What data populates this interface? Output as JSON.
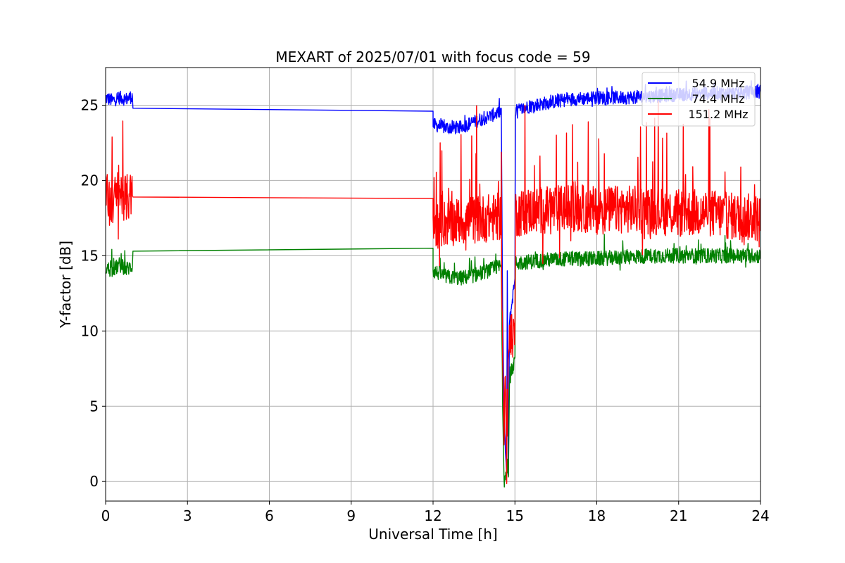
{
  "chart_data": {
    "type": "line",
    "title": "MEXART of 2025/07/01 with focus code = 59",
    "xlabel": "Universal Time [h]",
    "ylabel": "Y-factor [dB]",
    "xlim": [
      0,
      24
    ],
    "ylim": [
      -1.3,
      27.5
    ],
    "xticks": [
      0,
      3,
      6,
      9,
      12,
      15,
      18,
      21,
      24
    ],
    "yticks": [
      0,
      5,
      10,
      15,
      20,
      25
    ],
    "grid": true,
    "legend_position": "top-right",
    "series": [
      {
        "name": "54.9 MHz",
        "color": "#0000ff",
        "x": [
          0,
          0.25,
          0.5,
          0.75,
          0.98,
          1.0,
          12.0,
          12.0,
          12.5,
          13.0,
          13.5,
          14.0,
          14.5,
          14.55,
          14.6,
          14.65,
          14.7,
          14.72,
          14.76,
          14.8,
          15.0,
          15.02,
          15.5,
          16.0,
          17.0,
          18.0,
          19.0,
          20.0,
          21.0,
          22.0,
          23.0,
          24.0
        ],
        "y": [
          25.5,
          25.3,
          25.5,
          25.4,
          25.6,
          24.8,
          24.6,
          23.7,
          23.5,
          23.5,
          23.9,
          24.2,
          24.6,
          11.3,
          5.0,
          2.0,
          0.5,
          14.0,
          0.4,
          10.5,
          13.5,
          24.6,
          24.9,
          25.1,
          25.4,
          25.5,
          25.5,
          25.6,
          25.7,
          25.8,
          25.8,
          25.9
        ]
      },
      {
        "name": "74.4 MHz",
        "color": "#008000",
        "x": [
          0,
          0.25,
          0.5,
          0.75,
          0.98,
          1.0,
          12.0,
          12.0,
          12.5,
          13.0,
          13.5,
          14.0,
          14.3,
          14.5,
          14.55,
          14.6,
          14.7,
          14.76,
          14.8,
          15.0,
          15.02,
          15.5,
          16.0,
          17.0,
          18.0,
          19.0,
          20.0,
          21.0,
          22.0,
          23.0,
          24.0
        ],
        "y": [
          14.2,
          14.0,
          14.4,
          14.1,
          14.3,
          15.3,
          15.5,
          14.0,
          13.6,
          13.5,
          13.7,
          14.0,
          14.2,
          14.3,
          5.0,
          0.2,
          1.0,
          0.3,
          6.5,
          8.2,
          14.5,
          14.6,
          14.7,
          14.8,
          14.8,
          14.9,
          15.0,
          15.0,
          15.0,
          15.0,
          15.0
        ]
      },
      {
        "name": "151.2 MHz",
        "color": "#ff0000",
        "x": [
          0,
          0.25,
          0.5,
          0.75,
          0.98,
          1.0,
          12.0,
          12.0,
          12.5,
          13.0,
          13.5,
          14.0,
          14.5,
          14.55,
          14.6,
          14.65,
          14.7,
          14.76,
          14.8,
          15.0,
          15.02,
          15.5,
          16.0,
          17.0,
          18.0,
          19.0,
          20.0,
          21.0,
          22.0,
          23.0,
          24.0
        ],
        "y": [
          19.0,
          18.5,
          19.2,
          18.8,
          19.0,
          18.9,
          18.8,
          17.0,
          17.2,
          17.3,
          17.4,
          17.5,
          17.6,
          8.0,
          3.0,
          7.0,
          0.5,
          8.5,
          9.0,
          10.3,
          17.8,
          18.0,
          18.0,
          18.2,
          18.0,
          18.1,
          18.0,
          17.8,
          17.9,
          17.6,
          17.5
        ]
      }
    ]
  }
}
